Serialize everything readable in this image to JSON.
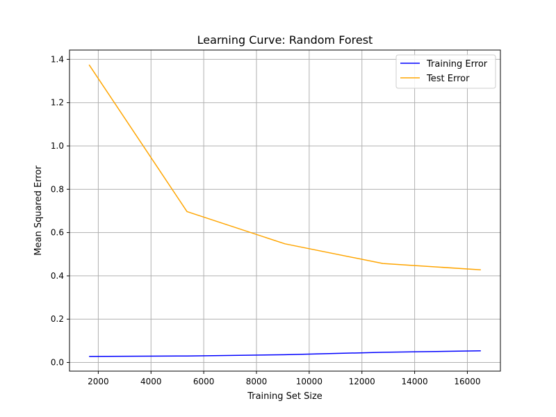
{
  "chart_data": {
    "type": "line",
    "title": "Learning Curve: Random Forest",
    "xlabel": "Training Set Size",
    "ylabel": "Mean Squared Error",
    "x": [
      1651,
      5365,
      9080,
      12795,
      16510
    ],
    "series": [
      {
        "name": "Training Error",
        "color": "#0000ff",
        "values": [
          0.028,
          0.03,
          0.036,
          0.047,
          0.054
        ]
      },
      {
        "name": "Test Error",
        "color": "#ffa500",
        "values": [
          1.375,
          0.697,
          0.548,
          0.457,
          0.428
        ]
      }
    ],
    "xlim": [
      908,
      17253
    ],
    "ylim": [
      -0.04,
      1.443
    ],
    "xticks": [
      2000,
      4000,
      6000,
      8000,
      10000,
      12000,
      14000,
      16000
    ],
    "yticks": [
      0.0,
      0.2,
      0.4,
      0.6,
      0.8,
      1.0,
      1.2,
      1.4
    ],
    "grid": true,
    "legend_position": "top-right"
  }
}
